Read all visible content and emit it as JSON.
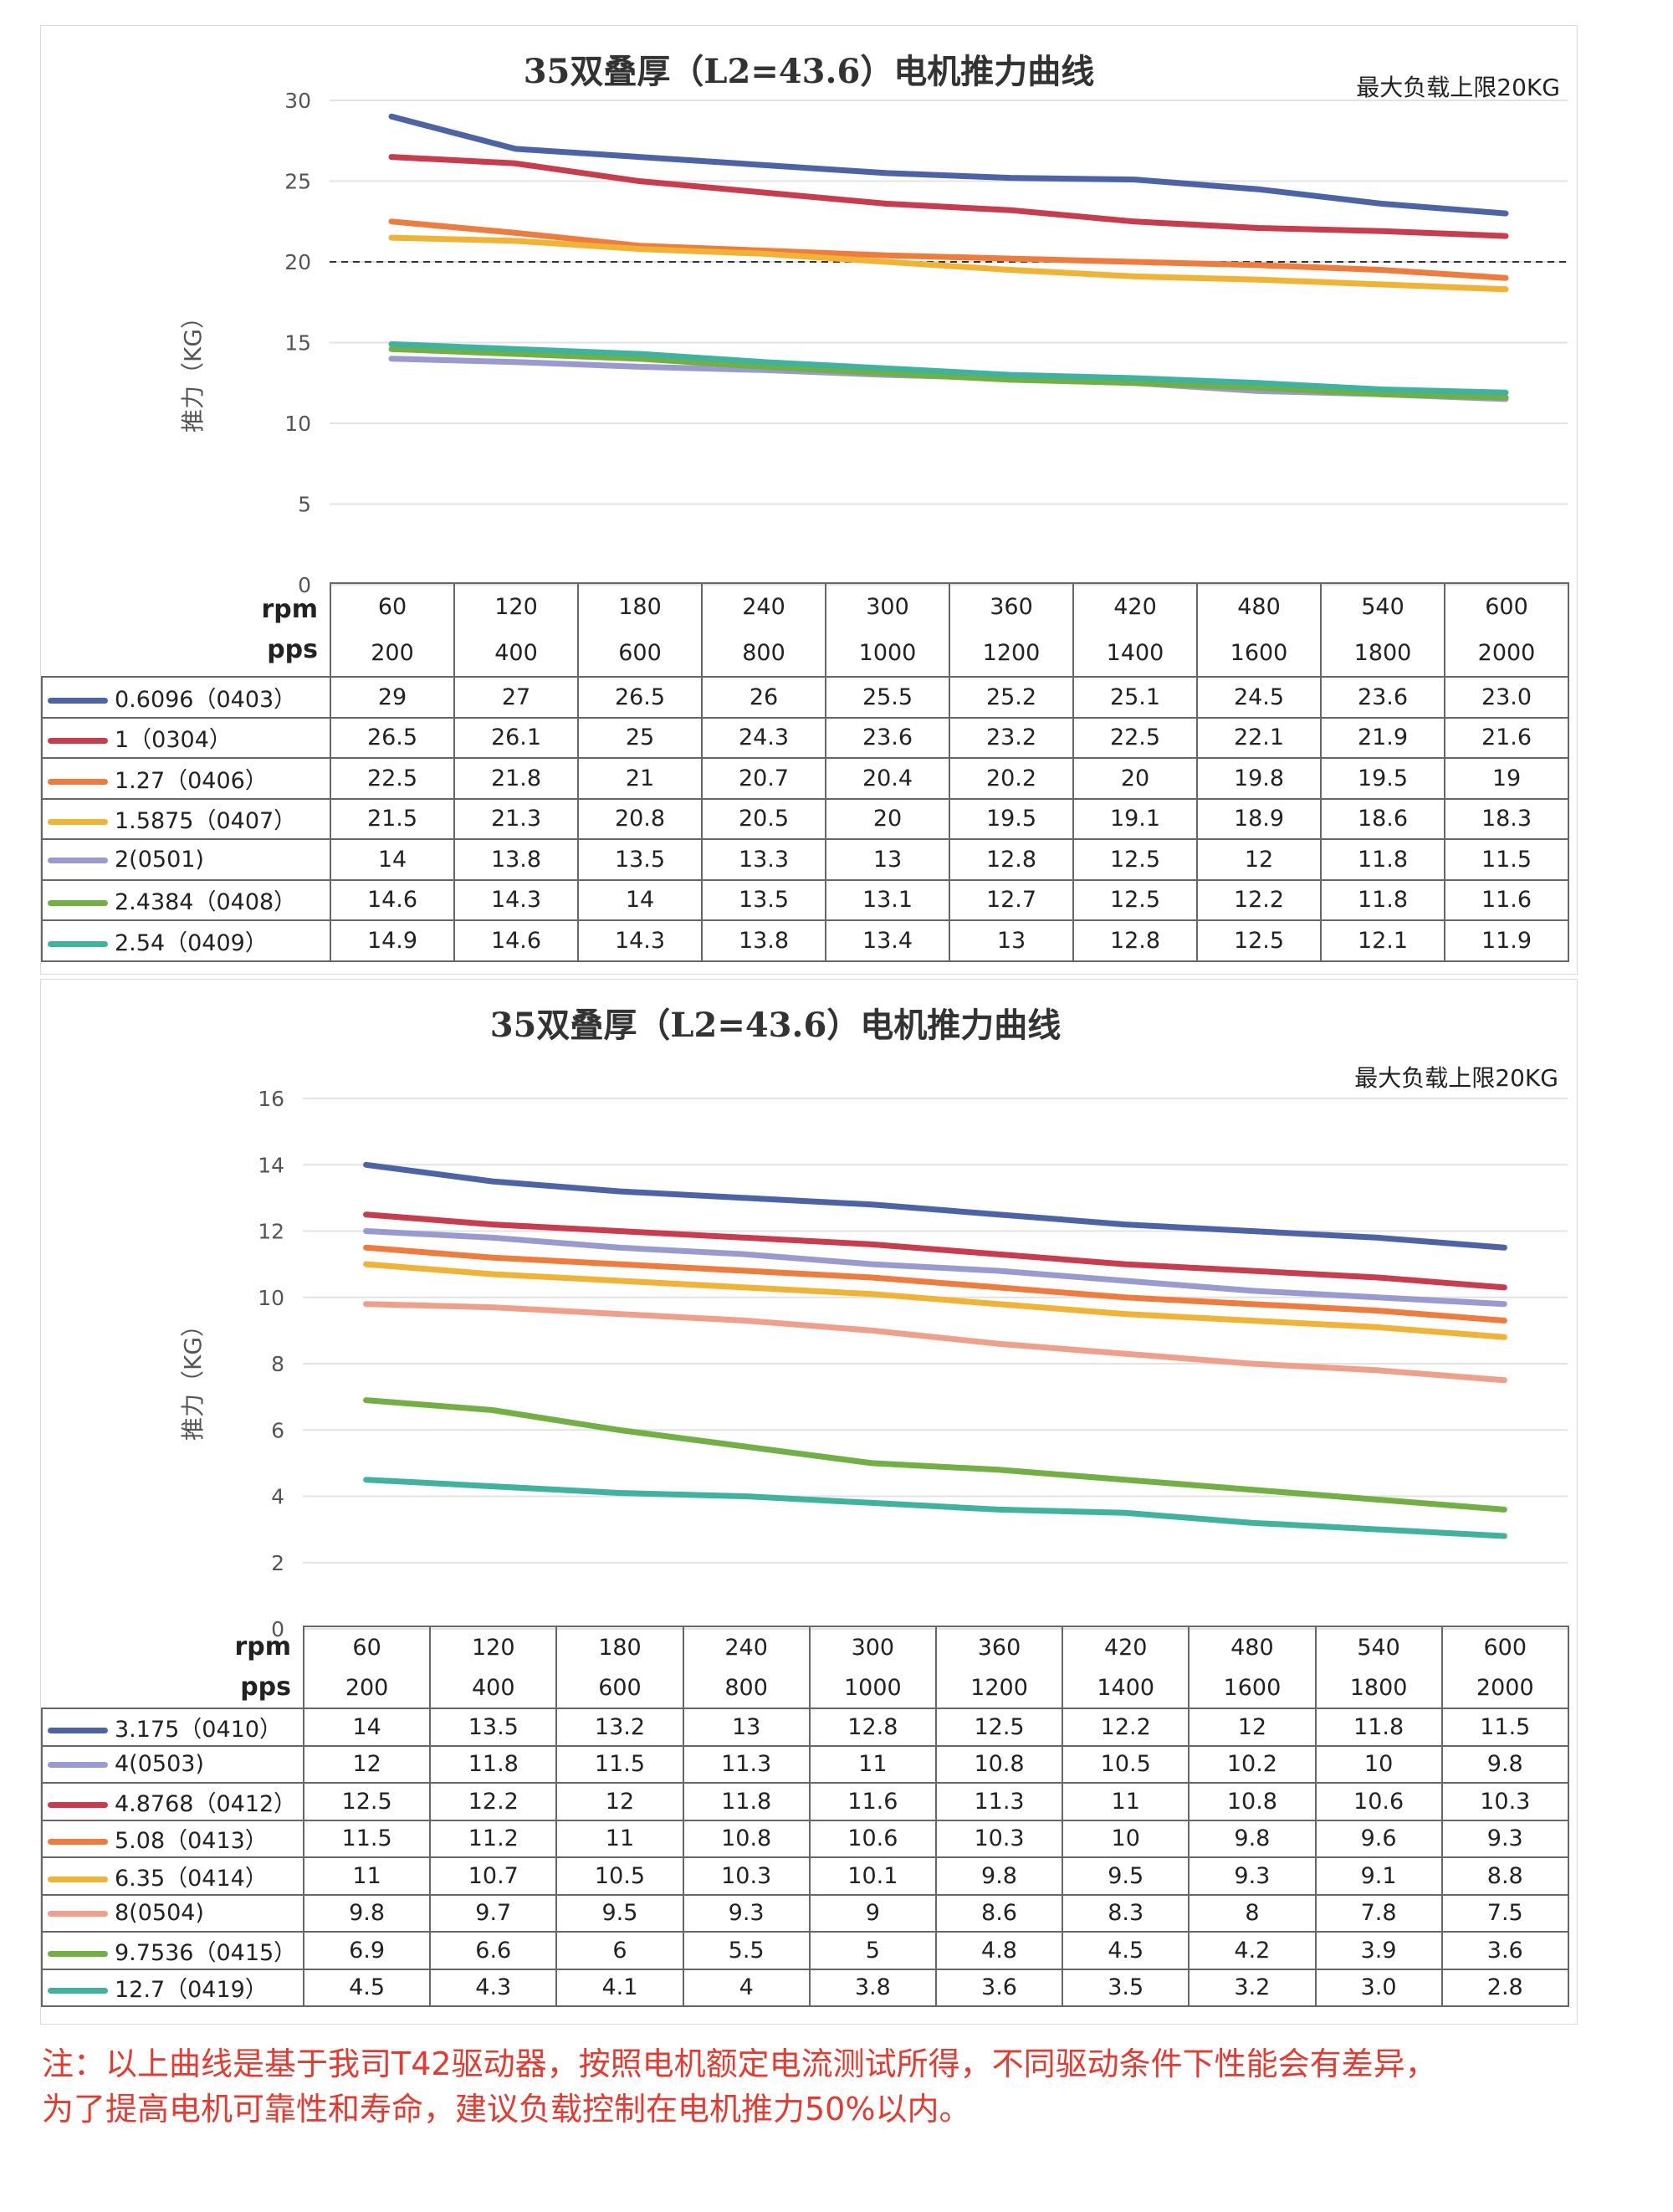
{
  "chart_data": [
    {
      "type": "line",
      "title": "35双叠厚（L2=43.6）电机推力曲线",
      "limit_note": "最大负载上限20KG",
      "ylabel": "推力（KG）",
      "ylim": [
        0,
        30
      ],
      "yticks": [
        "0",
        "5",
        "10",
        "15",
        "20",
        "25",
        "30"
      ],
      "limit_line": 20,
      "grid": true,
      "row_label_rpm": "rpm",
      "row_label_pps": "pps",
      "rpm": [
        "60",
        "120",
        "180",
        "240",
        "300",
        "360",
        "420",
        "480",
        "540",
        "600"
      ],
      "pps": [
        "200",
        "400",
        "600",
        "800",
        "1000",
        "1200",
        "1400",
        "1600",
        "1800",
        "2000"
      ],
      "series": [
        {
          "name": "0.6096（0403）",
          "color": "#4c63a8",
          "values": [
            29,
            27,
            26.5,
            26,
            25.5,
            25.2,
            25.1,
            24.5,
            23.6,
            23.0
          ],
          "labels": [
            "29",
            "27",
            "26.5",
            "26",
            "25.5",
            "25.2",
            "25.1",
            "24.5",
            "23.6",
            "23.0"
          ]
        },
        {
          "name": "1（0304）",
          "color": "#c93c4e",
          "values": [
            26.5,
            26.1,
            25,
            24.3,
            23.6,
            23.2,
            22.5,
            22.1,
            21.9,
            21.6
          ],
          "labels": [
            "26.5",
            "26.1",
            "25",
            "24.3",
            "23.6",
            "23.2",
            "22.5",
            "22.1",
            "21.9",
            "21.6"
          ]
        },
        {
          "name": "1.27（0406）",
          "color": "#ef7b3c",
          "values": [
            22.5,
            21.8,
            21,
            20.7,
            20.4,
            20.2,
            20,
            19.8,
            19.5,
            19
          ],
          "labels": [
            "22.5",
            "21.8",
            "21",
            "20.7",
            "20.4",
            "20.2",
            "20",
            "19.8",
            "19.5",
            "19"
          ]
        },
        {
          "name": "1.5875（0407）",
          "color": "#f2b233",
          "values": [
            21.5,
            21.3,
            20.8,
            20.5,
            20,
            19.5,
            19.1,
            18.9,
            18.6,
            18.3
          ],
          "labels": [
            "21.5",
            "21.3",
            "20.8",
            "20.5",
            "20",
            "19.5",
            "19.1",
            "18.9",
            "18.6",
            "18.3"
          ]
        },
        {
          "name": "2(0501)",
          "color": "#9a9ad2",
          "values": [
            14,
            13.8,
            13.5,
            13.3,
            13,
            12.8,
            12.5,
            12,
            11.8,
            11.5
          ],
          "labels": [
            "14",
            "13.8",
            "13.5",
            "13.3",
            "13",
            "12.8",
            "12.5",
            "12",
            "11.8",
            "11.5"
          ]
        },
        {
          "name": "2.4384（0408）",
          "color": "#72b043",
          "values": [
            14.6,
            14.3,
            14,
            13.5,
            13.1,
            12.7,
            12.5,
            12.2,
            11.8,
            11.6
          ],
          "labels": [
            "14.6",
            "14.3",
            "14",
            "13.5",
            "13.1",
            "12.7",
            "12.5",
            "12.2",
            "11.8",
            "11.6"
          ]
        },
        {
          "name": "2.54（0409）",
          "color": "#3fb39e",
          "values": [
            14.9,
            14.6,
            14.3,
            13.8,
            13.4,
            13,
            12.8,
            12.5,
            12.1,
            11.9
          ],
          "labels": [
            "14.9",
            "14.6",
            "14.3",
            "13.8",
            "13.4",
            "13",
            "12.8",
            "12.5",
            "12.1",
            "11.9"
          ]
        }
      ]
    },
    {
      "type": "line",
      "title": "35双叠厚（L2=43.6）电机推力曲线",
      "limit_note": "最大负载上限20KG",
      "ylabel": "推力（KG）",
      "ylim": [
        0,
        16
      ],
      "yticks": [
        "0",
        "2",
        "4",
        "6",
        "8",
        "10",
        "12",
        "14",
        "16"
      ],
      "grid": true,
      "row_label_rpm": "rpm",
      "row_label_pps": "pps",
      "rpm": [
        "60",
        "120",
        "180",
        "240",
        "300",
        "360",
        "420",
        "480",
        "540",
        "600"
      ],
      "pps": [
        "200",
        "400",
        "600",
        "800",
        "1000",
        "1200",
        "1400",
        "1600",
        "1800",
        "2000"
      ],
      "series": [
        {
          "name": "3.175（0410）",
          "color": "#4c63a8",
          "values": [
            14,
            13.5,
            13.2,
            13,
            12.8,
            12.5,
            12.2,
            12,
            11.8,
            11.5
          ],
          "labels": [
            "14",
            "13.5",
            "13.2",
            "13",
            "12.8",
            "12.5",
            "12.2",
            "12",
            "11.8",
            "11.5"
          ]
        },
        {
          "name": "4(0503)",
          "color": "#9a9ad2",
          "values": [
            12,
            11.8,
            11.5,
            11.3,
            11,
            10.8,
            10.5,
            10.2,
            10,
            9.8
          ],
          "labels": [
            "12",
            "11.8",
            "11.5",
            "11.3",
            "11",
            "10.8",
            "10.5",
            "10.2",
            "10",
            "9.8"
          ]
        },
        {
          "name": "4.8768（0412）",
          "color": "#c93c4e",
          "values": [
            12.5,
            12.2,
            12,
            11.8,
            11.6,
            11.3,
            11,
            10.8,
            10.6,
            10.3
          ],
          "labels": [
            "12.5",
            "12.2",
            "12",
            "11.8",
            "11.6",
            "11.3",
            "11",
            "10.8",
            "10.6",
            "10.3"
          ]
        },
        {
          "name": "5.08（0413）",
          "color": "#ef7b3c",
          "values": [
            11.5,
            11.2,
            11,
            10.8,
            10.6,
            10.3,
            10,
            9.8,
            9.6,
            9.3
          ],
          "labels": [
            "11.5",
            "11.2",
            "11",
            "10.8",
            "10.6",
            "10.3",
            "10",
            "9.8",
            "9.6",
            "9.3"
          ]
        },
        {
          "name": "6.35（0414）",
          "color": "#f2b233",
          "values": [
            11,
            10.7,
            10.5,
            10.3,
            10.1,
            9.8,
            9.5,
            9.3,
            9.1,
            8.8
          ],
          "labels": [
            "11",
            "10.7",
            "10.5",
            "10.3",
            "10.1",
            "9.8",
            "9.5",
            "9.3",
            "9.1",
            "8.8"
          ]
        },
        {
          "name": "8(0504)",
          "color": "#f0a08a",
          "values": [
            9.8,
            9.7,
            9.5,
            9.3,
            9,
            8.6,
            8.3,
            8,
            7.8,
            7.5
          ],
          "labels": [
            "9.8",
            "9.7",
            "9.5",
            "9.3",
            "9",
            "8.6",
            "8.3",
            "8",
            "7.8",
            "7.5"
          ]
        },
        {
          "name": "9.7536（0415）",
          "color": "#72b043",
          "values": [
            6.9,
            6.6,
            6,
            5.5,
            5,
            4.8,
            4.5,
            4.2,
            3.9,
            3.6
          ],
          "labels": [
            "6.9",
            "6.6",
            "6",
            "5.5",
            "5",
            "4.8",
            "4.5",
            "4.2",
            "3.9",
            "3.6"
          ]
        },
        {
          "name": "12.7（0419）",
          "color": "#3fb39e",
          "values": [
            4.5,
            4.3,
            4.1,
            4,
            3.8,
            3.6,
            3.5,
            3.2,
            3.0,
            2.8
          ],
          "labels": [
            "4.5",
            "4.3",
            "4.1",
            "4",
            "3.8",
            "3.6",
            "3.5",
            "3.2",
            "3.0",
            "2.8"
          ]
        }
      ]
    }
  ],
  "note": {
    "line1": "注：以上曲线是基于我司T42驱动器，按照电机额定电流测试所得，不同驱动条件下性能会有差异，",
    "line2": "为了提高电机可靠性和寿命，建议负载控制在电机推力50%以内。"
  }
}
